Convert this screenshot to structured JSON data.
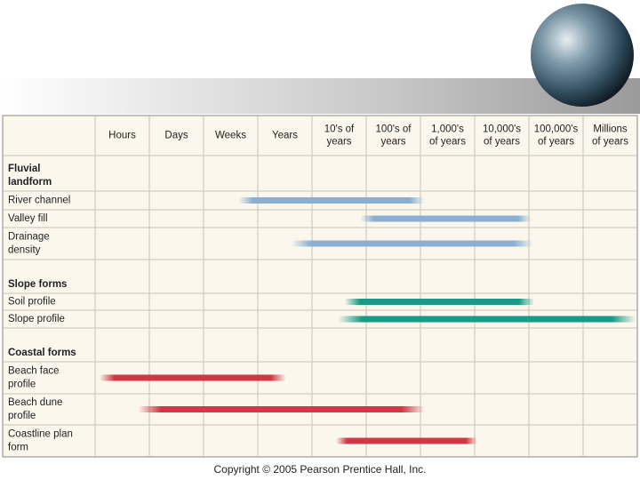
{
  "columns": [
    [
      "Hours"
    ],
    [
      "Days"
    ],
    [
      "Weeks"
    ],
    [
      "Years"
    ],
    [
      "10's of",
      "years"
    ],
    [
      "100's of",
      "years"
    ],
    [
      "1,000's",
      "of years"
    ],
    [
      "10,000's",
      "of years"
    ],
    [
      "100,000's",
      "of years"
    ],
    [
      "Millions",
      "of years"
    ]
  ],
  "rows": [
    {
      "label": [
        "Fluvial",
        "landform"
      ],
      "heading": true
    },
    {
      "label": [
        "River channel"
      ],
      "range": [
        2.64,
        6.08
      ],
      "color": "#8aafd0"
    },
    {
      "label": [
        "Valley fill"
      ],
      "range": [
        4.89,
        8.05
      ],
      "color": "#8aafd0"
    },
    {
      "label": [
        "Drainage",
        "density"
      ],
      "range": [
        3.62,
        8.08
      ],
      "color": "#8aafd0"
    },
    {
      "label": [
        "Slope forms"
      ],
      "heading": true
    },
    {
      "label": [
        "Soil profile"
      ],
      "range": [
        4.6,
        8.1
      ],
      "color": "#1a9a86"
    },
    {
      "label": [
        "Slope profile"
      ],
      "range": [
        4.48,
        9.97
      ],
      "color": "#1a9a86"
    },
    {
      "label": [
        "Coastal forms"
      ],
      "heading": true
    },
    {
      "label": [
        "Beach face",
        "profile"
      ],
      "range": [
        0.08,
        3.52
      ],
      "color": "#d03848"
    },
    {
      "label": [
        "Beach dune",
        "profile"
      ],
      "range": [
        0.79,
        6.08
      ],
      "color": "#d03848"
    },
    {
      "label": [
        "Coastline plan",
        "form"
      ],
      "range": [
        4.44,
        7.05
      ],
      "color": "#d03848"
    }
  ],
  "footer": "Copyright © 2005 Pearson Prentice Hall, Inc."
}
